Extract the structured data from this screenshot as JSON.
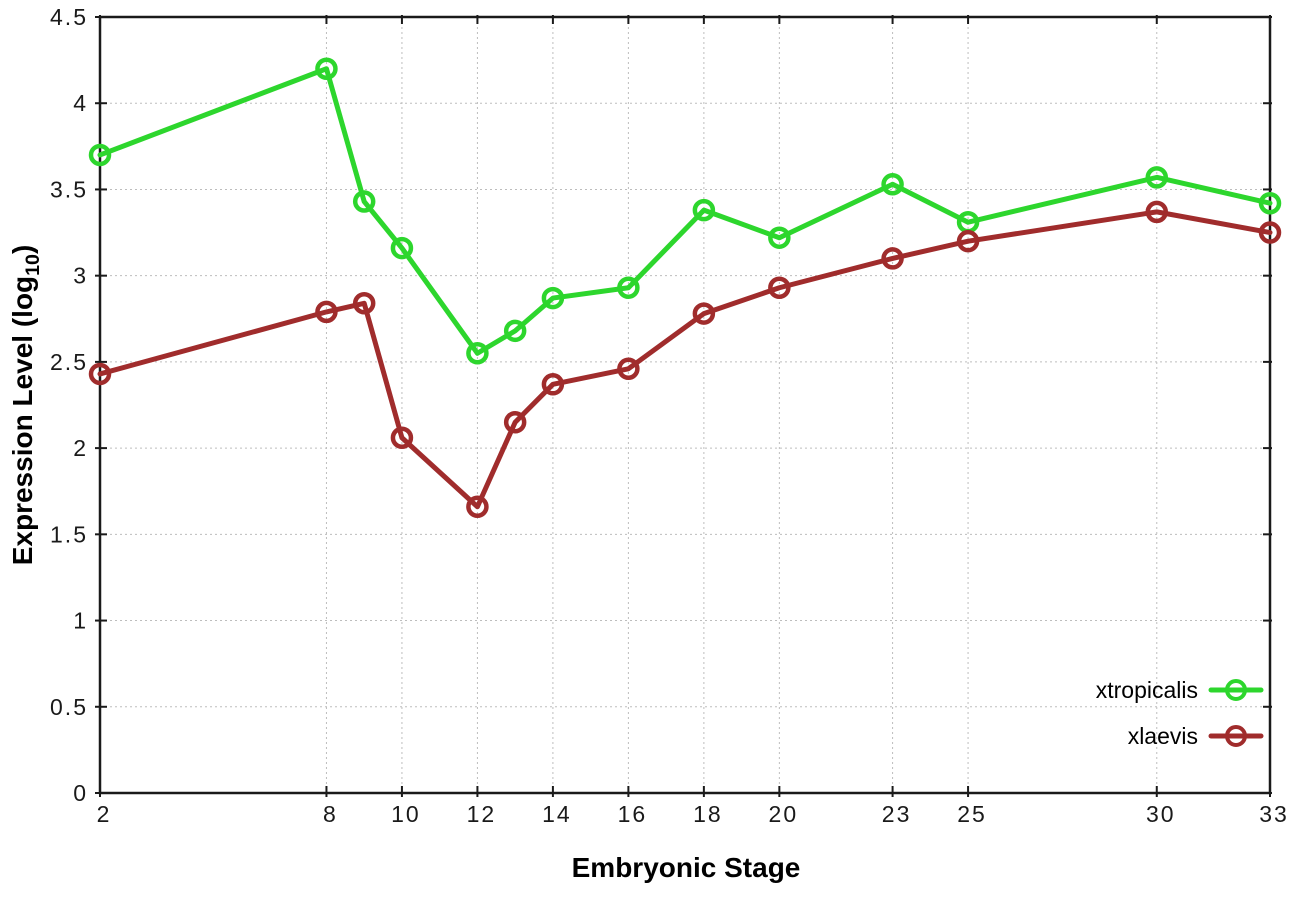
{
  "chart_data": {
    "type": "line",
    "title": "",
    "xlabel": "Embryonic Stage",
    "ylabel": "Expression Level (log10)",
    "ylabel_parts": {
      "main": "Expression Level (log",
      "sub": "10",
      "close": ")"
    },
    "xlim": [
      2,
      33
    ],
    "ylim": [
      0,
      4.5
    ],
    "grid": true,
    "grid_style": "dotted",
    "legend_position": "inside-bottom-right",
    "x": [
      2,
      8,
      9,
      10,
      12,
      13,
      14,
      16,
      18,
      20,
      23,
      25,
      30,
      33
    ],
    "x_ticks": [
      "2",
      "8",
      "10",
      "12",
      "14",
      "16",
      "18",
      "20",
      "23",
      "25",
      "30",
      "33"
    ],
    "y_ticks": [
      "0",
      "0.5",
      "1",
      "1.5",
      "2",
      "2.5",
      "3",
      "3.5",
      "4",
      "4.5"
    ],
    "series": [
      {
        "name": "xtropicalis",
        "color": "#2dd62d",
        "marker": "open-circle",
        "values": [
          3.7,
          4.2,
          3.43,
          3.16,
          2.55,
          2.68,
          2.87,
          2.93,
          3.38,
          3.22,
          3.53,
          3.31,
          3.57,
          3.42
        ]
      },
      {
        "name": "xlaevis",
        "color": "#a02c2c",
        "marker": "open-circle",
        "values": [
          2.43,
          2.79,
          2.84,
          2.06,
          1.66,
          2.15,
          2.37,
          2.46,
          2.78,
          2.93,
          3.1,
          3.2,
          3.37,
          3.25
        ]
      }
    ]
  },
  "colors": {
    "background": "#ffffff",
    "axis": "#1a1a1a",
    "grid": "#bdbdbd",
    "tick_text": "#1a1a1a"
  }
}
